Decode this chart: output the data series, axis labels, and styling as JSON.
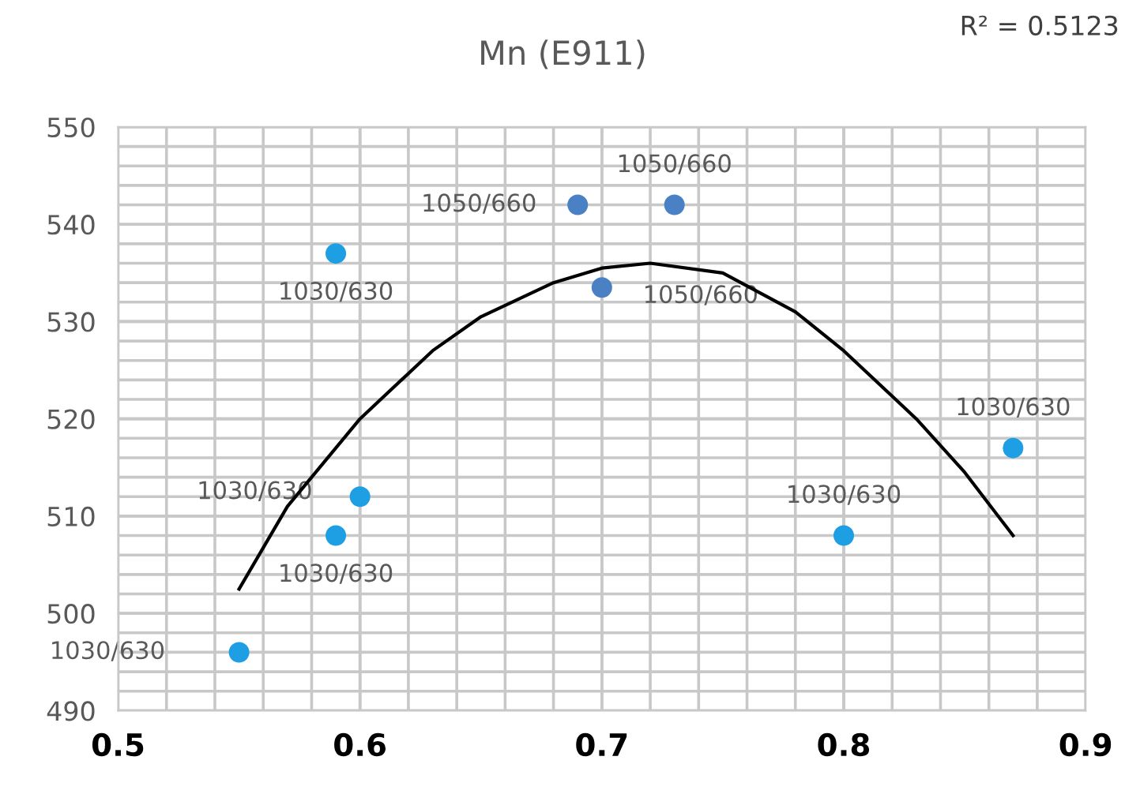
{
  "chart_data": {
    "type": "scatter",
    "title": "Mn (E911)",
    "series": [
      {
        "name": "1030/630",
        "color": "#1e9fe3",
        "marker": "circle",
        "x": [
          0.55,
          0.59,
          0.59,
          0.6,
          0.8,
          0.87
        ],
        "values": [
          496,
          537,
          508,
          512,
          508,
          517
        ]
      },
      {
        "name": "1050/660",
        "color": "#4a80c4",
        "marker": "circle",
        "x": [
          0.69,
          0.7,
          0.73
        ],
        "values": [
          542,
          533.5,
          542
        ]
      },
      {
        "type": "line",
        "color": "#000000",
        "x": [
          0.55,
          0.57,
          0.6,
          0.63,
          0.65,
          0.68,
          0.7,
          0.72,
          0.75,
          0.78,
          0.8,
          0.83,
          0.85,
          0.87
        ],
        "values": [
          502.5,
          511,
          520,
          527,
          530.5,
          534,
          535.5,
          536,
          535,
          531,
          527,
          520,
          514.5,
          508
        ]
      }
    ],
    "annotations": [
      "R² = 0.5123"
    ],
    "xlim": [
      0.5,
      0.9
    ],
    "xticks": [
      0.5,
      0.6,
      0.7,
      0.8,
      0.9
    ],
    "ylim": [
      490,
      550
    ],
    "yticks": [
      490,
      500,
      510,
      520,
      530,
      540,
      550
    ],
    "grid": true
  }
}
